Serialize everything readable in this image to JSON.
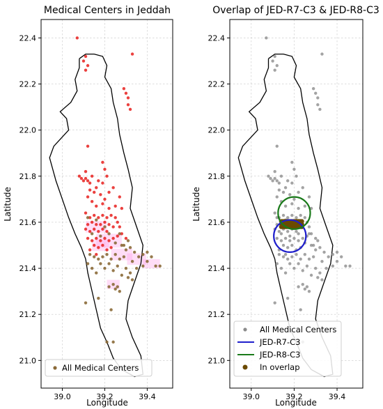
{
  "chart_data": [
    {
      "type": "scatter",
      "title": "Medical Centers in Jeddah",
      "xlabel": "Longitude",
      "ylabel": "Latitude",
      "xlim": [
        38.9,
        39.52
      ],
      "ylim": [
        20.88,
        22.48
      ],
      "xticks": [
        39.0,
        39.2,
        39.4
      ],
      "yticks": [
        21.0,
        21.2,
        21.4,
        21.6,
        21.8,
        22.0,
        22.2,
        22.4
      ],
      "grid": true,
      "legend_position": "lower-center",
      "colors": {
        "points_north": "#e8201d",
        "points_south": "#8b6a38",
        "heat": "#ff9de8",
        "coast": "#000000"
      },
      "series": [
        {
          "name": "All Medical Centers",
          "marker": "dot"
        }
      ],
      "points_north": [
        [
          39.07,
          22.4
        ],
        [
          39.11,
          22.32
        ],
        [
          39.1,
          22.3
        ],
        [
          39.12,
          22.28
        ],
        [
          39.11,
          22.26
        ],
        [
          39.33,
          22.33
        ],
        [
          39.29,
          22.18
        ],
        [
          39.3,
          22.16
        ],
        [
          39.31,
          22.14
        ],
        [
          39.31,
          22.11
        ],
        [
          39.32,
          22.09
        ],
        [
          39.12,
          21.93
        ],
        [
          39.19,
          21.77
        ],
        [
          39.2,
          21.83
        ],
        [
          39.19,
          21.86
        ],
        [
          39.21,
          21.8
        ],
        [
          39.08,
          21.8
        ],
        [
          39.09,
          21.79
        ],
        [
          39.1,
          21.78
        ],
        [
          39.11,
          21.79
        ],
        [
          39.12,
          21.78
        ],
        [
          39.13,
          21.77
        ],
        [
          39.14,
          21.8
        ],
        [
          39.11,
          21.82
        ],
        [
          39.13,
          21.74
        ],
        [
          39.15,
          21.73
        ],
        [
          39.16,
          21.75
        ],
        [
          39.17,
          21.78
        ],
        [
          39.18,
          21.72
        ],
        [
          39.2,
          21.7
        ],
        [
          39.22,
          21.73
        ],
        [
          39.24,
          21.75
        ],
        [
          39.27,
          21.71
        ],
        [
          39.25,
          21.67
        ],
        [
          39.28,
          21.66
        ],
        [
          39.22,
          21.66
        ],
        [
          39.19,
          21.68
        ],
        [
          39.16,
          21.67
        ],
        [
          39.14,
          21.69
        ],
        [
          39.12,
          21.71
        ],
        [
          39.11,
          21.64
        ],
        [
          39.13,
          21.62
        ],
        [
          39.15,
          21.63
        ],
        [
          39.17,
          21.62
        ],
        [
          39.19,
          21.63
        ],
        [
          39.21,
          21.62
        ],
        [
          39.23,
          21.63
        ],
        [
          39.25,
          21.62
        ],
        [
          39.26,
          21.6
        ],
        [
          39.24,
          21.58
        ],
        [
          39.22,
          21.59
        ],
        [
          39.2,
          21.6
        ],
        [
          39.18,
          21.59
        ],
        [
          39.16,
          21.59
        ],
        [
          39.14,
          21.6
        ],
        [
          39.12,
          21.59
        ],
        [
          39.11,
          21.57
        ],
        [
          39.13,
          21.56
        ],
        [
          39.15,
          21.57
        ],
        [
          39.17,
          21.56
        ],
        [
          39.19,
          21.57
        ],
        [
          39.21,
          21.56
        ],
        [
          39.12,
          21.53
        ],
        [
          39.14,
          21.52
        ],
        [
          39.16,
          21.53
        ],
        [
          39.18,
          21.52
        ],
        [
          39.2,
          21.53
        ],
        [
          39.22,
          21.52
        ],
        [
          39.24,
          21.53
        ],
        [
          39.26,
          21.54
        ],
        [
          39.28,
          21.55
        ],
        [
          39.3,
          21.53
        ],
        [
          39.27,
          21.58
        ],
        [
          39.15,
          21.5
        ],
        [
          39.17,
          21.49
        ],
        [
          39.13,
          21.48
        ],
        [
          39.19,
          21.5
        ],
        [
          39.21,
          21.48
        ],
        [
          39.23,
          21.49
        ],
        [
          39.16,
          21.46
        ]
      ],
      "points_south": [
        [
          39.12,
          21.62
        ],
        [
          39.16,
          21.61
        ],
        [
          39.2,
          21.58
        ],
        [
          39.14,
          21.55
        ],
        [
          39.18,
          21.54
        ],
        [
          39.22,
          21.55
        ],
        [
          39.25,
          21.51
        ],
        [
          39.28,
          21.5
        ],
        [
          39.3,
          21.48
        ],
        [
          39.32,
          21.49
        ],
        [
          39.34,
          21.47
        ],
        [
          39.36,
          21.45
        ],
        [
          39.38,
          21.46
        ],
        [
          39.4,
          21.47
        ],
        [
          39.42,
          21.45
        ],
        [
          39.33,
          21.43
        ],
        [
          39.35,
          21.4
        ],
        [
          39.38,
          21.41
        ],
        [
          39.4,
          21.43
        ],
        [
          39.44,
          21.41
        ],
        [
          39.46,
          21.41
        ],
        [
          39.29,
          21.45
        ],
        [
          39.27,
          21.44
        ],
        [
          39.25,
          21.46
        ],
        [
          39.23,
          21.44
        ],
        [
          39.21,
          21.46
        ],
        [
          39.19,
          21.45
        ],
        [
          39.17,
          21.44
        ],
        [
          39.15,
          21.45
        ],
        [
          39.13,
          21.46
        ],
        [
          39.22,
          21.42
        ],
        [
          39.26,
          21.41
        ],
        [
          39.3,
          21.4
        ],
        [
          39.32,
          21.38
        ],
        [
          39.31,
          21.36
        ],
        [
          39.33,
          21.35
        ],
        [
          39.28,
          21.37
        ],
        [
          39.24,
          21.39
        ],
        [
          39.2,
          21.4
        ],
        [
          39.18,
          21.42
        ],
        [
          39.16,
          21.38
        ],
        [
          39.14,
          21.4
        ],
        [
          39.12,
          21.42
        ],
        [
          39.24,
          21.33
        ],
        [
          39.26,
          21.32
        ],
        [
          39.25,
          21.31
        ],
        [
          39.22,
          21.32
        ],
        [
          39.27,
          21.3
        ],
        [
          39.17,
          21.27
        ],
        [
          39.11,
          21.25
        ],
        [
          39.23,
          21.22
        ],
        [
          39.21,
          21.08
        ],
        [
          39.24,
          21.08
        ],
        [
          39.29,
          21.5
        ],
        [
          39.31,
          21.52
        ],
        [
          39.27,
          21.55
        ]
      ],
      "heat_cells": [
        [
          39.16,
          21.58,
          0.1,
          0.05
        ],
        [
          39.22,
          21.52,
          0.12,
          0.06
        ],
        [
          39.28,
          21.46,
          0.1,
          0.05
        ],
        [
          39.35,
          21.44,
          0.09,
          0.05
        ],
        [
          39.42,
          21.42,
          0.08,
          0.04
        ],
        [
          39.24,
          21.33,
          0.06,
          0.04
        ],
        [
          39.18,
          21.5,
          0.08,
          0.05
        ]
      ]
    },
    {
      "type": "scatter",
      "title": "Overlap of JED-R7-C3 & JED-R8-C3",
      "xlabel": "Longitude",
      "ylabel": "Latitude",
      "xlim": [
        38.9,
        39.52
      ],
      "ylim": [
        20.88,
        22.48
      ],
      "xticks": [
        39.0,
        39.2,
        39.4
      ],
      "yticks": [
        21.0,
        21.2,
        21.4,
        21.6,
        21.8,
        22.0,
        22.2,
        22.4
      ],
      "grid": true,
      "legend_position": "lower-center",
      "colors": {
        "points": "#8c8c8c",
        "r7": "#1f1fcc",
        "r8": "#1a7a1a",
        "overlap": "#6b4a00",
        "coast": "#000000"
      },
      "series": [
        {
          "name": "All Medical Centers",
          "marker": "dot"
        },
        {
          "name": "JED-R7-C3",
          "marker": "line"
        },
        {
          "name": "JED-R8-C3",
          "marker": "line"
        },
        {
          "name": "In overlap",
          "marker": "bigdot"
        }
      ],
      "circle_r7": {
        "center": [
          39.18,
          21.54
        ],
        "radius": 0.075
      },
      "circle_r8": {
        "center": [
          39.2,
          21.64
        ],
        "radius": 0.075
      },
      "overlap_band": {
        "lon_range": [
          39.14,
          39.24
        ],
        "lat_range": [
          21.58,
          21.61
        ]
      }
    }
  ]
}
